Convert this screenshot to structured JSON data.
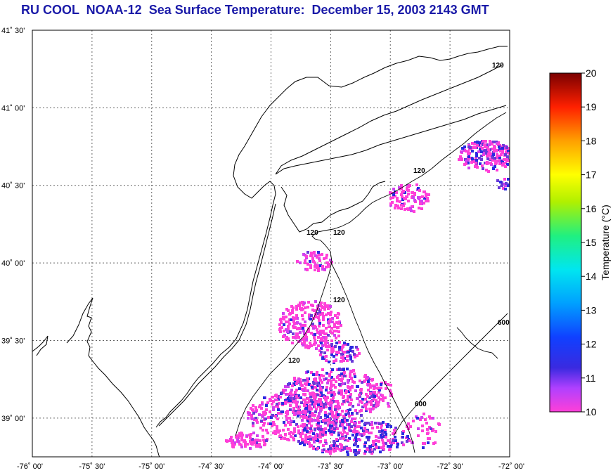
{
  "title": "RU COOL  NOAA-12  Sea Surface Temperature:  December 15, 2003 2143 GMT",
  "map": {
    "lat_labels": [
      {
        "lat": 41.5,
        "text": "41˚ 30'"
      },
      {
        "lat": 41.0,
        "text": "41˚ 00'"
      },
      {
        "lat": 40.5,
        "text": "40˚ 30'"
      },
      {
        "lat": 40.0,
        "text": "40˚ 00'"
      },
      {
        "lat": 39.5,
        "text": "39˚ 30'"
      },
      {
        "lat": 39.0,
        "text": "39˚ 00'"
      }
    ],
    "lon_labels": [
      {
        "lon": -76.0,
        "text": "-76˚ 00'"
      },
      {
        "lon": -75.5,
        "text": "-75˚ 30'"
      },
      {
        "lon": -75.0,
        "text": "-75˚ 00'"
      },
      {
        "lon": -74.5,
        "text": "-74˚ 30'"
      },
      {
        "lon": -74.0,
        "text": "-74˚ 00'"
      },
      {
        "lon": -73.5,
        "text": "-73˚ 30'"
      },
      {
        "lon": -73.0,
        "text": "-73˚ 00'"
      },
      {
        "lon": -72.5,
        "text": "-72˚ 30'"
      },
      {
        "lon": -72.0,
        "text": "-72˚ 00'"
      }
    ],
    "bathymetry_labels": [
      "120",
      "120",
      "120",
      "120",
      "120",
      "120",
      "600",
      "600"
    ]
  },
  "colorbar": {
    "label": "Temperature (°C)",
    "ticks": [
      "20",
      "19",
      "18",
      "17",
      "16",
      "15",
      "14",
      "13",
      "12",
      "11",
      "10"
    ],
    "min": 10,
    "max": 20
  }
}
